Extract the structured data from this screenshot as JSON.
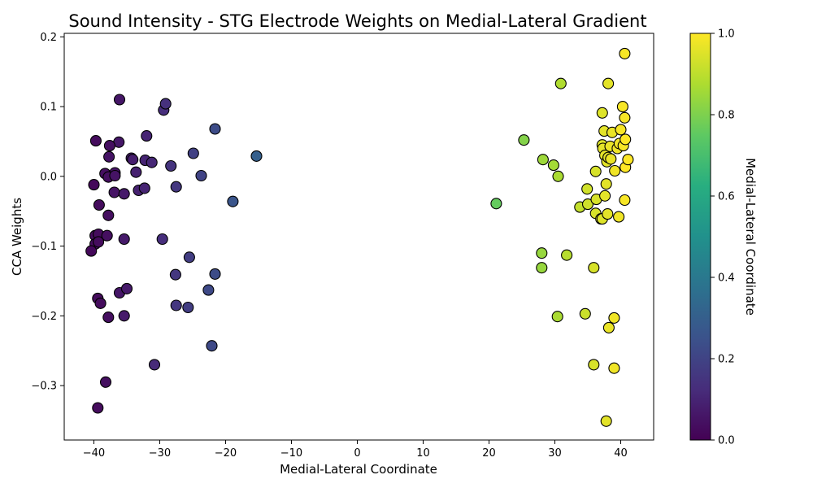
{
  "chart_data": {
    "type": "scatter",
    "title": "Sound Intensity - STG Electrode Weights on Medial-Lateral Gradient",
    "xlabel": "Medial-Lateral Coordinate",
    "ylabel": "CCA Weights",
    "xlim": [
      -44.5,
      45
    ],
    "ylim": [
      -0.378,
      0.205
    ],
    "xticks": [
      -40,
      -30,
      -20,
      -10,
      0,
      10,
      20,
      30,
      40
    ],
    "xtick_labels": [
      "−40",
      "−30",
      "−20",
      "−10",
      "0",
      "10",
      "20",
      "30",
      "40"
    ],
    "yticks": [
      -0.3,
      -0.2,
      -0.1,
      0.0,
      0.1,
      0.2
    ],
    "ytick_labels": [
      "−0.3",
      "−0.2",
      "−0.1",
      "0.0",
      "0.1",
      "0.2"
    ],
    "grid": false,
    "colormap": "viridis",
    "colorbar": {
      "label": "Medial-Lateral Coordinate",
      "range": [
        0.0,
        1.0
      ],
      "ticks": [
        0.0,
        0.2,
        0.4,
        0.6,
        0.8,
        1.0
      ],
      "tick_labels": [
        "0.0",
        "0.2",
        "0.4",
        "0.6",
        "0.8",
        "1.0"
      ]
    },
    "marker": {
      "edge_color": "#000000"
    },
    "points": [
      {
        "x": -39.7,
        "y": 0.051,
        "c": 0.03
      },
      {
        "x": -36.1,
        "y": 0.11,
        "c": 0.06
      },
      {
        "x": -36.2,
        "y": 0.049,
        "c": 0.06
      },
      {
        "x": -37.6,
        "y": 0.044,
        "c": 0.04
      },
      {
        "x": -37.7,
        "y": 0.028,
        "c": 0.05
      },
      {
        "x": -38.3,
        "y": 0.004,
        "c": 0.04
      },
      {
        "x": -36.8,
        "y": 0.005,
        "c": 0.05
      },
      {
        "x": -37.8,
        "y": -0.001,
        "c": 0.04
      },
      {
        "x": -36.8,
        "y": 0.001,
        "c": 0.05
      },
      {
        "x": -40.0,
        "y": -0.012,
        "c": 0.02
      },
      {
        "x": -36.9,
        "y": -0.023,
        "c": 0.05
      },
      {
        "x": -35.4,
        "y": -0.025,
        "c": 0.07
      },
      {
        "x": -39.2,
        "y": -0.041,
        "c": 0.03
      },
      {
        "x": -37.8,
        "y": -0.056,
        "c": 0.04
      },
      {
        "x": -39.8,
        "y": -0.085,
        "c": 0.03
      },
      {
        "x": -39.3,
        "y": -0.083,
        "c": 0.03
      },
      {
        "x": -38.0,
        "y": -0.085,
        "c": 0.04
      },
      {
        "x": -39.8,
        "y": -0.097,
        "c": 0.03
      },
      {
        "x": -39.3,
        "y": -0.094,
        "c": 0.03
      },
      {
        "x": -40.4,
        "y": -0.107,
        "c": 0.02
      },
      {
        "x": -35.4,
        "y": -0.09,
        "c": 0.07
      },
      {
        "x": -39.4,
        "y": -0.175,
        "c": 0.03
      },
      {
        "x": -39.0,
        "y": -0.182,
        "c": 0.03
      },
      {
        "x": -36.1,
        "y": -0.167,
        "c": 0.06
      },
      {
        "x": -35.0,
        "y": -0.161,
        "c": 0.07
      },
      {
        "x": -37.8,
        "y": -0.202,
        "c": 0.04
      },
      {
        "x": -35.4,
        "y": -0.2,
        "c": 0.07
      },
      {
        "x": -38.2,
        "y": -0.295,
        "c": 0.04
      },
      {
        "x": -39.4,
        "y": -0.332,
        "c": 0.03
      },
      {
        "x": -34.3,
        "y": 0.026,
        "c": 0.08
      },
      {
        "x": -34.1,
        "y": 0.024,
        "c": 0.08
      },
      {
        "x": -32.2,
        "y": 0.023,
        "c": 0.1
      },
      {
        "x": -31.2,
        "y": 0.02,
        "c": 0.11
      },
      {
        "x": -33.6,
        "y": 0.006,
        "c": 0.09
      },
      {
        "x": -33.2,
        "y": -0.02,
        "c": 0.09
      },
      {
        "x": -32.3,
        "y": -0.017,
        "c": 0.1
      },
      {
        "x": -32.0,
        "y": 0.058,
        "c": 0.1
      },
      {
        "x": -29.4,
        "y": 0.095,
        "c": 0.13
      },
      {
        "x": -29.1,
        "y": 0.104,
        "c": 0.14
      },
      {
        "x": -28.3,
        "y": 0.015,
        "c": 0.15
      },
      {
        "x": -27.5,
        "y": -0.015,
        "c": 0.16
      },
      {
        "x": -29.6,
        "y": -0.09,
        "c": 0.13
      },
      {
        "x": -27.6,
        "y": -0.141,
        "c": 0.16
      },
      {
        "x": -27.5,
        "y": -0.185,
        "c": 0.16
      },
      {
        "x": -25.7,
        "y": -0.188,
        "c": 0.18
      },
      {
        "x": -25.5,
        "y": -0.116,
        "c": 0.18
      },
      {
        "x": -30.8,
        "y": -0.27,
        "c": 0.12
      },
      {
        "x": -24.9,
        "y": 0.033,
        "c": 0.19
      },
      {
        "x": -23.7,
        "y": 0.001,
        "c": 0.2
      },
      {
        "x": -21.6,
        "y": 0.068,
        "c": 0.23
      },
      {
        "x": -21.6,
        "y": -0.14,
        "c": 0.23
      },
      {
        "x": -22.6,
        "y": -0.163,
        "c": 0.22
      },
      {
        "x": -22.1,
        "y": -0.243,
        "c": 0.22
      },
      {
        "x": -18.9,
        "y": -0.036,
        "c": 0.26
      },
      {
        "x": -15.3,
        "y": 0.029,
        "c": 0.3
      },
      {
        "x": 21.1,
        "y": -0.039,
        "c": 0.76
      },
      {
        "x": 25.3,
        "y": 0.052,
        "c": 0.81
      },
      {
        "x": 28.2,
        "y": 0.024,
        "c": 0.85
      },
      {
        "x": 29.8,
        "y": 0.016,
        "c": 0.86
      },
      {
        "x": 30.5,
        "y": 0.0,
        "c": 0.87
      },
      {
        "x": 30.9,
        "y": 0.133,
        "c": 0.88
      },
      {
        "x": 28.0,
        "y": -0.11,
        "c": 0.84
      },
      {
        "x": 28.0,
        "y": -0.131,
        "c": 0.84
      },
      {
        "x": 31.8,
        "y": -0.113,
        "c": 0.89
      },
      {
        "x": 30.4,
        "y": -0.201,
        "c": 0.87
      },
      {
        "x": 33.8,
        "y": -0.044,
        "c": 0.91
      },
      {
        "x": 34.6,
        "y": -0.197,
        "c": 0.92
      },
      {
        "x": 34.9,
        "y": -0.018,
        "c": 0.93
      },
      {
        "x": 35.0,
        "y": -0.04,
        "c": 0.93
      },
      {
        "x": 35.9,
        "y": -0.131,
        "c": 0.94
      },
      {
        "x": 35.9,
        "y": -0.27,
        "c": 0.94
      },
      {
        "x": 36.2,
        "y": 0.007,
        "c": 0.94
      },
      {
        "x": 36.3,
        "y": -0.033,
        "c": 0.94
      },
      {
        "x": 36.2,
        "y": -0.053,
        "c": 0.94
      },
      {
        "x": 37.0,
        "y": -0.061,
        "c": 0.95
      },
      {
        "x": 37.2,
        "y": -0.061,
        "c": 0.95
      },
      {
        "x": 37.6,
        "y": -0.028,
        "c": 0.96
      },
      {
        "x": 37.8,
        "y": -0.011,
        "c": 0.96
      },
      {
        "x": 38.0,
        "y": -0.054,
        "c": 0.96
      },
      {
        "x": 37.2,
        "y": 0.091,
        "c": 0.95
      },
      {
        "x": 37.5,
        "y": 0.065,
        "c": 0.96
      },
      {
        "x": 37.2,
        "y": 0.045,
        "c": 0.95
      },
      {
        "x": 37.3,
        "y": 0.04,
        "c": 0.96
      },
      {
        "x": 37.6,
        "y": 0.03,
        "c": 0.96
      },
      {
        "x": 37.9,
        "y": 0.021,
        "c": 0.96
      },
      {
        "x": 38.1,
        "y": 0.027,
        "c": 0.96
      },
      {
        "x": 38.4,
        "y": 0.043,
        "c": 0.97
      },
      {
        "x": 38.5,
        "y": 0.025,
        "c": 0.97
      },
      {
        "x": 38.7,
        "y": 0.063,
        "c": 0.97
      },
      {
        "x": 38.1,
        "y": 0.133,
        "c": 0.96
      },
      {
        "x": 39.1,
        "y": 0.008,
        "c": 0.98
      },
      {
        "x": 39.5,
        "y": 0.04,
        "c": 0.98
      },
      {
        "x": 39.8,
        "y": 0.047,
        "c": 0.98
      },
      {
        "x": 40.0,
        "y": 0.067,
        "c": 0.99
      },
      {
        "x": 40.3,
        "y": 0.1,
        "c": 0.99
      },
      {
        "x": 40.4,
        "y": 0.044,
        "c": 0.99
      },
      {
        "x": 40.6,
        "y": 0.084,
        "c": 0.99
      },
      {
        "x": 40.7,
        "y": 0.053,
        "c": 1.0
      },
      {
        "x": 40.7,
        "y": 0.013,
        "c": 1.0
      },
      {
        "x": 41.1,
        "y": 0.024,
        "c": 1.0
      },
      {
        "x": 40.6,
        "y": -0.034,
        "c": 0.99
      },
      {
        "x": 40.6,
        "y": 0.176,
        "c": 0.99
      },
      {
        "x": 39.7,
        "y": -0.058,
        "c": 0.98
      },
      {
        "x": 39.0,
        "y": -0.203,
        "c": 0.98
      },
      {
        "x": 38.2,
        "y": -0.217,
        "c": 0.97
      },
      {
        "x": 39.0,
        "y": -0.275,
        "c": 0.98
      },
      {
        "x": 37.8,
        "y": -0.351,
        "c": 0.96
      }
    ]
  }
}
